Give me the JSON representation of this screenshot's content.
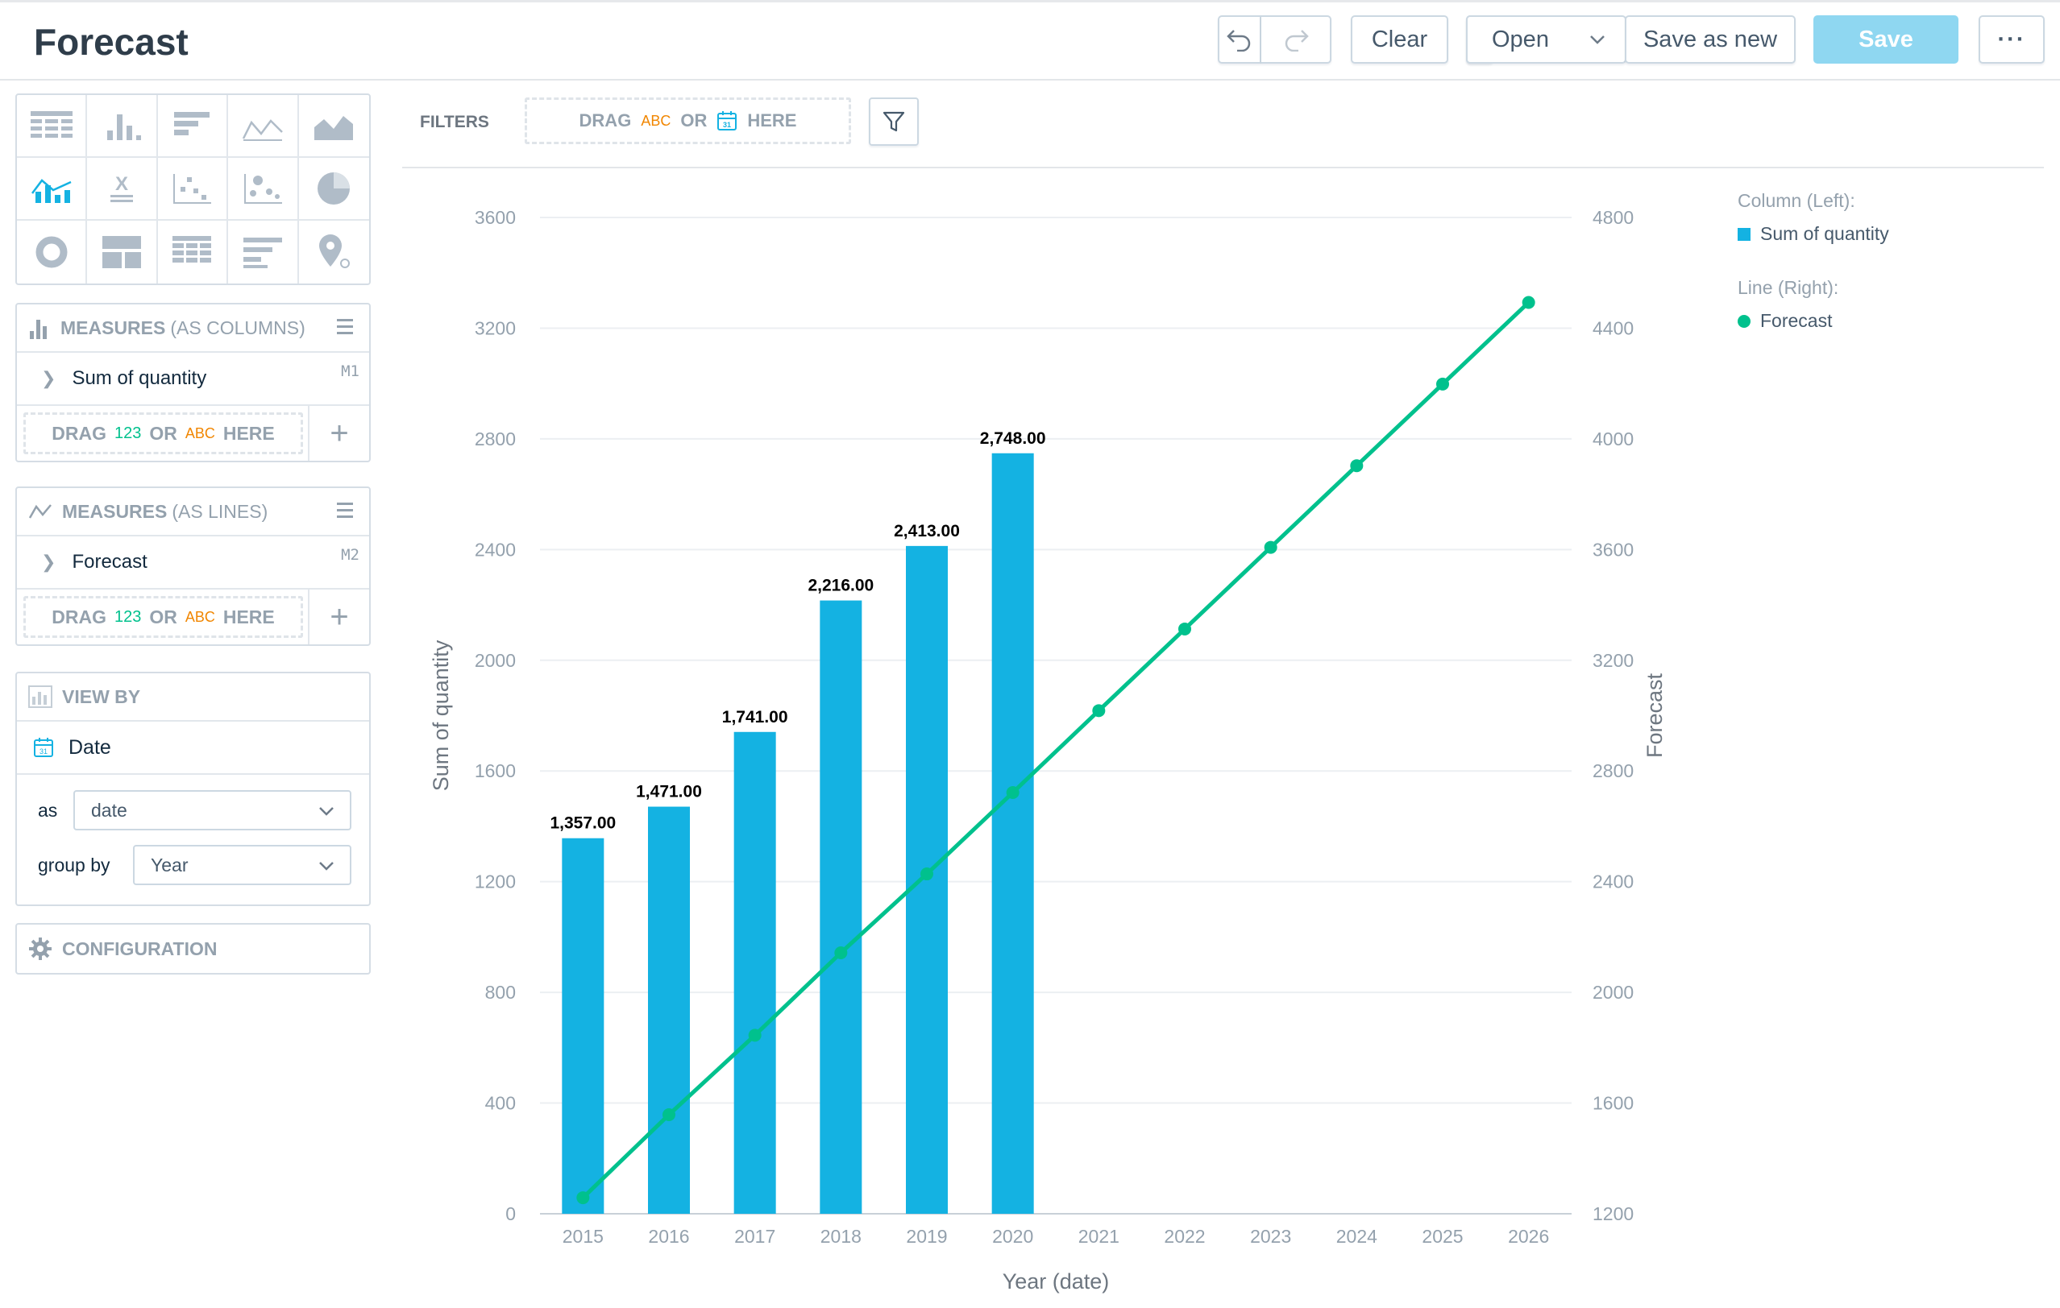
{
  "header": {
    "title": "Forecast",
    "clear_label": "Clear",
    "open_label": "Open",
    "save_as_new_label": "Save as new",
    "save_label": "Save",
    "more_label": "···"
  },
  "filters": {
    "label": "FILTERS",
    "drag_prefix": "DRAG",
    "abc": "ABC",
    "or": "OR",
    "cal": "31",
    "here": "HERE"
  },
  "measures_columns": {
    "title": "MEASURES",
    "subtitle": "(AS COLUMNS)",
    "item_label": "Sum of quantity",
    "item_tag": "M1",
    "drag_prefix": "DRAG",
    "num": "123",
    "or": "OR",
    "abc": "ABC",
    "here": "HERE"
  },
  "measures_lines": {
    "title": "MEASURES",
    "subtitle": "(AS LINES)",
    "item_label": "Forecast",
    "item_tag": "M2",
    "drag_prefix": "DRAG",
    "num": "123",
    "or": "OR",
    "abc": "ABC",
    "here": "HERE"
  },
  "view_by": {
    "title": "VIEW BY",
    "item_label": "Date",
    "as_label": "as",
    "as_value": "date",
    "group_label": "group by",
    "group_value": "Year"
  },
  "configuration": {
    "title": "CONFIGURATION"
  },
  "legend": {
    "column_group": "Column (Left):",
    "column_entry": "Sum of quantity",
    "line_group": "Line (Right):",
    "line_entry": "Forecast"
  },
  "colors": {
    "bar": "#14b2e2",
    "line": "#00c18d",
    "save_button": "#8fd7f1"
  },
  "chart_data": {
    "type": "combo",
    "xlabel": "Year (date)",
    "ylabel_left": "Sum of quantity",
    "ylabel_right": "Forecast",
    "categories": [
      "2015",
      "2016",
      "2017",
      "2018",
      "2019",
      "2020",
      "2021",
      "2022",
      "2023",
      "2024",
      "2025",
      "2026"
    ],
    "left_axis": {
      "min": 0,
      "max": 3600,
      "ticks": [
        0,
        400,
        800,
        1200,
        1600,
        2000,
        2400,
        2800,
        3200,
        3600
      ]
    },
    "right_axis": {
      "min": 1200,
      "max": 4800,
      "ticks": [
        1200,
        1600,
        2000,
        2400,
        2800,
        3200,
        3600,
        4000,
        4400,
        4800
      ]
    },
    "series": [
      {
        "name": "Sum of quantity",
        "kind": "column",
        "axis": "left",
        "values": [
          1357,
          1471,
          1741,
          2216,
          2413,
          2748,
          null,
          null,
          null,
          null,
          null,
          null
        ],
        "labels": [
          "1,357.00",
          "1,471.00",
          "1,741.00",
          "2,216.00",
          "2,413.00",
          "2,748.00"
        ]
      },
      {
        "name": "Forecast",
        "kind": "line",
        "axis": "right",
        "values": [
          1258,
          1558,
          1845,
          2143,
          2428,
          2722,
          3018,
          3313,
          3608,
          3903,
          4198,
          4493
        ]
      }
    ]
  }
}
